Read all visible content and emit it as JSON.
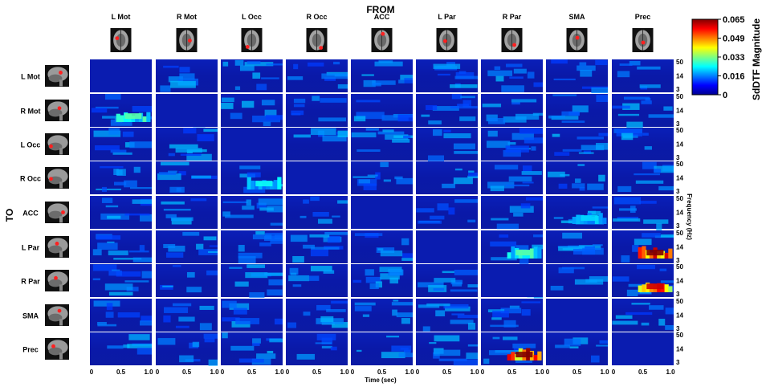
{
  "chart_data": {
    "type": "heatmap",
    "title": "",
    "from_label": "FROM",
    "to_label": "TO",
    "regions": [
      "L Mot",
      "R Mot",
      "L Occ",
      "R Occ",
      "ACC",
      "L Par",
      "R Par",
      "SMA",
      "Prec"
    ],
    "xlabel": "Time (sec)",
    "ylabel": "Frequency (Hz)",
    "x_ticks": [
      "0",
      "0.5",
      "1.0"
    ],
    "y_ticks": [
      "50",
      "14",
      "3"
    ],
    "xlim": [
      0,
      1.0
    ],
    "ylim": [
      3,
      50
    ],
    "colorbar": {
      "label": "SdDTF Magnitude",
      "ticks": [
        "0.065",
        "0.049",
        "0.033",
        "0.016",
        "0"
      ],
      "range": [
        0,
        0.065
      ]
    },
    "strong_connections": [
      {
        "from": "L Mot",
        "to": "R Mot",
        "peak": 0.03
      },
      {
        "from": "Prec",
        "to": "L Par",
        "peak": 0.065
      },
      {
        "from": "Prec",
        "to": "R Par",
        "peak": 0.06
      },
      {
        "from": "R Par",
        "to": "Prec",
        "peak": 0.065
      },
      {
        "from": "SMA",
        "to": "ACC",
        "peak": 0.022
      },
      {
        "from": "R Par",
        "to": "L Par",
        "peak": 0.03
      },
      {
        "from": "L Occ",
        "to": "R Occ",
        "peak": 0.025
      }
    ]
  }
}
